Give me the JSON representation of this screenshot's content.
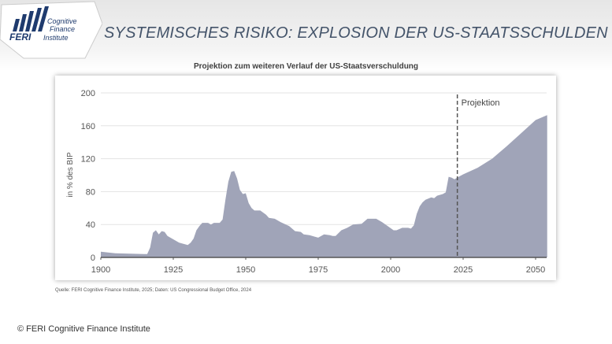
{
  "logo": {
    "brand": "FERI",
    "line1": "Cognitive",
    "line2": "Finance",
    "line3": "Institute"
  },
  "header": {
    "title": "SYSTEMISCHES RISIKO: EXPLOSION DER US-STAATSSCHULDEN"
  },
  "colors": {
    "area": "#a0a4b8",
    "title": "#44546a",
    "logo": "#1f3b6e"
  },
  "chart_data": {
    "type": "area",
    "title": "Projektion zum weiteren Verlauf der US-Staatsverschuldung",
    "xlabel": "",
    "ylabel": "in % des BIP",
    "xlim": [
      1900,
      2055
    ],
    "ylim": [
      0,
      200
    ],
    "xticks": [
      "1900",
      "1925",
      "1950",
      "1975",
      "2000",
      "2025",
      "2050"
    ],
    "yticks": [
      "0",
      "40",
      "80",
      "120",
      "160",
      "200"
    ],
    "projection_start": 2023,
    "projection_label": "Projektion",
    "x": [
      1900,
      1905,
      1910,
      1915,
      1916,
      1917,
      1918,
      1919,
      1920,
      1921,
      1922,
      1923,
      1925,
      1927,
      1929,
      1930,
      1931,
      1932,
      1933,
      1934,
      1935,
      1937,
      1938,
      1939,
      1940,
      1941,
      1942,
      1943,
      1944,
      1945,
      1946,
      1947,
      1948,
      1949,
      1950,
      1951,
      1952,
      1953,
      1955,
      1957,
      1958,
      1960,
      1962,
      1965,
      1967,
      1969,
      1970,
      1972,
      1974,
      1975,
      1977,
      1979,
      1980,
      1981,
      1983,
      1985,
      1987,
      1990,
      1992,
      1995,
      1997,
      1999,
      2001,
      2002,
      2004,
      2006,
      2007,
      2008,
      2009,
      2010,
      2011,
      2012,
      2014,
      2015,
      2016,
      2018,
      2019,
      2020,
      2021,
      2022,
      2023,
      2024,
      2025,
      2030,
      2035,
      2040,
      2045,
      2050,
      2054
    ],
    "values": [
      7,
      5,
      4.5,
      4,
      4,
      12,
      30,
      33,
      28,
      32,
      31,
      26,
      22,
      18,
      16,
      15,
      18,
      23,
      33,
      38,
      42,
      42,
      40,
      42,
      42,
      42,
      46,
      70,
      92,
      104,
      105,
      96,
      82,
      77,
      78,
      66,
      60,
      57,
      57,
      52,
      48,
      47,
      43,
      38,
      32,
      31,
      28,
      27,
      25,
      24,
      28,
      27,
      26,
      26,
      33,
      36,
      40,
      41,
      47,
      47,
      43,
      38,
      33,
      33,
      36,
      36,
      35,
      39,
      53,
      62,
      67,
      70,
      73,
      72,
      75,
      77,
      79,
      98,
      97,
      95,
      97,
      99,
      101,
      109,
      120,
      135,
      151,
      167,
      173
    ]
  },
  "footer": {
    "source": "Quelle: FERI Cognitive Finance Institute, 2025; Daten: US Congressional Budget Office, 2024",
    "copyright": "© FERI Cognitive Finance Institute"
  }
}
